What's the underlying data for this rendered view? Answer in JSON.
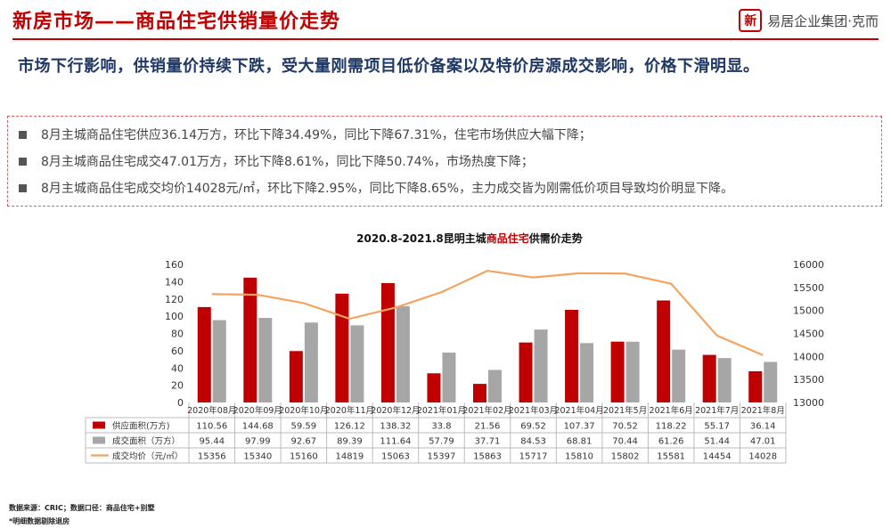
{
  "header": {
    "title": "新房市场——商品住宅供销量价走势",
    "brand_logo": "新",
    "brand_name": "易居企业集团·克而"
  },
  "headline": "市场下行影响，供销量价持续下跌，受大量刚需项目低价备案以及特价房源成交影响，价格下滑明显。",
  "bullets": [
    "8月主城商品住宅供应36.14万方，环比下降34.49%，同比下降67.31%，住宅市场供应大幅下降；",
    "8月主城商品住宅成交47.01万方，环比下降8.61%，同比下降50.74%，市场热度下降；",
    "8月主城商品住宅成交均价14028元/㎡，环比下降2.95%，同比下降8.65%，主力成交皆为刚需低价项目导致均价明显下降。"
  ],
  "chart_data": {
    "type": "bar",
    "title_parts": [
      "2020.8-2021.8昆明主城",
      "商品住宅",
      "供需价走势"
    ],
    "categories": [
      "2020年08月",
      "2020年09月",
      "2020年10月",
      "2020年11月",
      "2020年12月",
      "2021年01月",
      "2021年02月",
      "2021年03月",
      "2021年04月",
      "2021年5月",
      "2021年6月",
      "2021年7月",
      "2021年8月"
    ],
    "series": [
      {
        "name": "供应面积(万方)",
        "kind": "bar",
        "axis": "left",
        "color": "#c00000",
        "values": [
          110.56,
          144.68,
          59.59,
          126.12,
          138.32,
          33.8,
          21.56,
          69.52,
          107.37,
          70.52,
          118.22,
          55.17,
          36.14
        ],
        "labels": [
          "110.56",
          "144.68",
          "59.59",
          "126.12",
          "138.32",
          "33.8",
          "21.56",
          "69.52",
          "107.37",
          "70.52",
          "118.22",
          "55.17",
          "36.14"
        ]
      },
      {
        "name": "成交面积（万方）",
        "kind": "bar",
        "axis": "left",
        "color": "#a6a6a6",
        "values": [
          95.44,
          97.99,
          92.67,
          89.39,
          111.64,
          57.79,
          37.71,
          84.53,
          68.81,
          70.44,
          61.26,
          51.44,
          47.01
        ],
        "labels": [
          "95.44",
          "97.99",
          "92.67",
          "89.39",
          "111.64",
          "57.79",
          "37.71",
          "84.53",
          "68.81",
          "70.44",
          "61.26",
          "51.44",
          "47.01"
        ]
      },
      {
        "name": "成交均价（元/㎡）",
        "kind": "line",
        "axis": "right",
        "color": "#f4a460",
        "values": [
          15356,
          15340,
          15160,
          14819,
          15063,
          15397,
          15863,
          15717,
          15810,
          15802,
          15581,
          14454,
          14028
        ],
        "labels": [
          "15356",
          "15340",
          "15160",
          "14819",
          "15063",
          "15397",
          "15863",
          "15717",
          "15810",
          "15802",
          "15581",
          "14454",
          "14028"
        ]
      }
    ],
    "y_left": {
      "min": 0,
      "max": 160,
      "ticks": [
        "0",
        "20",
        "40",
        "60",
        "80",
        "100",
        "120",
        "140",
        "160"
      ]
    },
    "y_right": {
      "min": 13000,
      "max": 16000,
      "ticks": [
        "13000",
        "13500",
        "14000",
        "14500",
        "15000",
        "15500",
        "16000"
      ]
    },
    "grid": false,
    "legend": "data-table"
  },
  "footnotes": [
    "数据来源：CRIC；数据口径：商品住宅+别墅",
    "*明细数据剔除退房"
  ]
}
